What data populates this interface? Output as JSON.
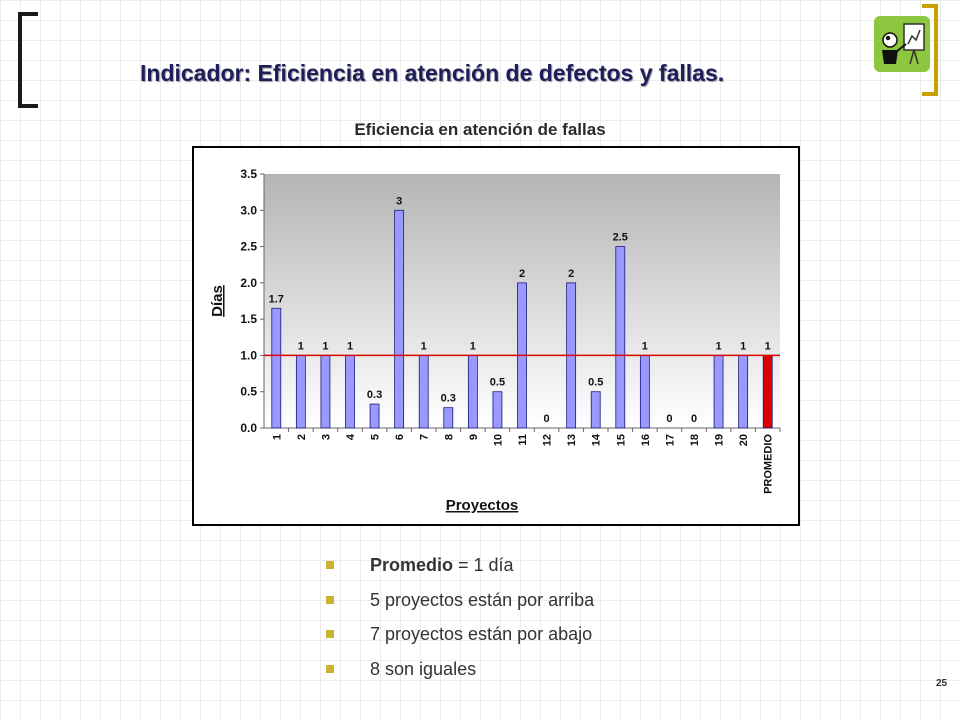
{
  "slide": {
    "title": "Indicador: Eficiencia en atención de defectos y fallas.",
    "page_number": "25"
  },
  "chart_data": {
    "type": "bar",
    "title": "Eficiencia en atención de fallas",
    "xlabel": "Proyectos",
    "ylabel": "Días",
    "categories": [
      "1",
      "2",
      "3",
      "4",
      "5",
      "6",
      "7",
      "8",
      "9",
      "10",
      "11",
      "12",
      "13",
      "14",
      "15",
      "16",
      "17",
      "18",
      "19",
      "20",
      "PROMEDIO"
    ],
    "values": [
      1.65,
      1,
      1,
      1,
      0.33,
      3,
      1,
      0.28,
      1,
      0.5,
      2,
      0,
      2,
      0.5,
      2.5,
      1,
      0,
      0,
      1,
      1,
      1
    ],
    "data_labels": [
      "1.7",
      "1",
      "1",
      "1",
      "0.3",
      "3",
      "1",
      "0.3",
      "1",
      "0.5",
      "2",
      "0",
      "2",
      "0.5",
      "2.5",
      "1",
      "0",
      "0",
      "1",
      "1",
      "1"
    ],
    "y_ticks": [
      "0.0",
      "0.5",
      "1.0",
      "1.5",
      "2.0",
      "2.5",
      "3.0",
      "3.5"
    ],
    "ylim": [
      0,
      3.5
    ],
    "reference_line": 1.0,
    "colors": {
      "bar": "#9999ff",
      "highlight_bar": "#dd0000",
      "reference_line": "#dd0000",
      "plot_top": "#b4b4b4",
      "plot_bottom": "#ffffff"
    }
  },
  "bullets": [
    {
      "strong": "Promedio",
      "rest": " = 1 día"
    },
    {
      "strong": "",
      "rest": "5 proyectos están por arriba"
    },
    {
      "strong": "",
      "rest": "7 proyectos están por abajo"
    },
    {
      "strong": "",
      "rest": "8 son iguales"
    }
  ]
}
